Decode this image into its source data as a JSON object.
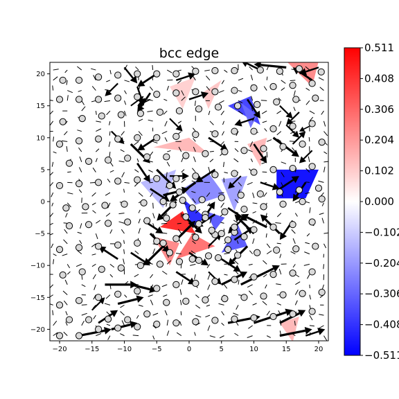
{
  "chart_data": {
    "type": "heatmap",
    "title": "bcc edge",
    "xlabel": "",
    "ylabel": "",
    "xlim": [
      -21.5,
      21.5
    ],
    "ylim": [
      -21.8,
      21.8
    ],
    "x_ticks": [
      -20,
      -15,
      -10,
      -5,
      0,
      5,
      10,
      15,
      20
    ],
    "y_ticks": [
      -20,
      -15,
      -10,
      -5,
      0,
      5,
      10,
      15,
      20
    ],
    "colorbar": {
      "cmap": "bwr",
      "vmin": -0.511,
      "vmax": 0.511,
      "tick_labels": [
        "0.511",
        "0.408",
        "0.306",
        "0.204",
        "0.102",
        "0.000",
        "−0.102",
        "−0.204",
        "−0.306",
        "−0.408",
        "−0.511"
      ]
    },
    "field_patches": [
      {
        "x": [
          13.5,
          20.0,
          18.0,
          13.5
        ],
        "y": [
          5.0,
          5.0,
          0.5,
          0.5
        ],
        "value": -0.511
      },
      {
        "x": [
          -1.0,
          2.5,
          0.5
        ],
        "y": [
          0.5,
          -2.5,
          -4.0
        ],
        "value": -0.45
      },
      {
        "x": [
          2.5,
          5.5,
          4.0
        ],
        "y": [
          -1.5,
          -2.5,
          -4.5
        ],
        "value": -0.35
      },
      {
        "x": [
          -4.5,
          -1.0,
          1.0
        ],
        "y": [
          -4.0,
          -1.5,
          -5.0
        ],
        "value": 0.45
      },
      {
        "x": [
          -2.0,
          0.5,
          4.0
        ],
        "y": [
          -9.0,
          -5.0,
          -7.0
        ],
        "value": 0.3
      },
      {
        "x": [
          -1.0,
          3.0,
          5.5,
          1.0
        ],
        "y": [
          2.0,
          4.5,
          1.0,
          -0.5
        ],
        "value": -0.25
      },
      {
        "x": [
          5.0,
          7.5,
          9.0
        ],
        "y": [
          -8.0,
          -3.5,
          -7.0
        ],
        "value": -0.35
      },
      {
        "x": [
          6.0,
          9.5,
          11.0
        ],
        "y": [
          15.0,
          16.5,
          12.0
        ],
        "value": -0.4
      },
      {
        "x": [
          8.0,
          10.5,
          9.5
        ],
        "y": [
          15.5,
          13.5,
          11.5
        ],
        "value": -0.3
      },
      {
        "x": [
          5.0,
          9.0,
          7.0
        ],
        "y": [
          3.5,
          4.0,
          -1.5
        ],
        "value": -0.2
      },
      {
        "x": [
          -7.5,
          -2.0,
          -4.0
        ],
        "y": [
          3.0,
          5.0,
          -1.0
        ],
        "value": -0.15
      },
      {
        "x": [
          -5.5,
          -1.5,
          -3.0
        ],
        "y": [
          -5.5,
          -6.5,
          -10.0
        ],
        "value": 0.25
      },
      {
        "x": [
          -5.5,
          0.0,
          3.0
        ],
        "y": [
          8.5,
          10.0,
          7.5
        ],
        "value": 0.15
      },
      {
        "x": [
          15.0,
          20.0,
          19.0
        ],
        "y": [
          22.0,
          22.0,
          18.0
        ],
        "value": 0.25
      },
      {
        "x": [
          2.0,
          5.0,
          3.0
        ],
        "y": [
          17.0,
          19.0,
          14.5
        ],
        "value": 0.12
      },
      {
        "x": [
          -3.0,
          1.0,
          -1.0
        ],
        "y": [
          18.0,
          19.5,
          14.5
        ],
        "value": 0.1
      },
      {
        "x": [
          9.0,
          12.0,
          11.0
        ],
        "y": [
          9.0,
          10.0,
          5.5
        ],
        "value": 0.15
      },
      {
        "x": [
          14.0,
          17.0,
          16.0
        ],
        "y": [
          -19.0,
          -18.0,
          -22.0
        ],
        "value": 0.15
      }
    ],
    "atoms": [
      [
        -19.5,
        19
      ],
      [
        -17,
        19
      ],
      [
        -14,
        19.5
      ],
      [
        -11,
        19.8
      ],
      [
        -8,
        20
      ],
      [
        -5,
        20
      ],
      [
        -2,
        20
      ],
      [
        1,
        20.4
      ],
      [
        4,
        20.5
      ],
      [
        7,
        20.5
      ],
      [
        11,
        20.6
      ],
      [
        14,
        20.4
      ],
      [
        17,
        20.8
      ],
      [
        20.4,
        20.3
      ],
      [
        -20,
        16
      ],
      [
        -17,
        16
      ],
      [
        -14,
        16
      ],
      [
        -11,
        16.2
      ],
      [
        -8,
        16.4
      ],
      [
        -5,
        16.8
      ],
      [
        -2,
        17
      ],
      [
        1,
        17.2
      ],
      [
        4,
        17.2
      ],
      [
        7,
        17.4
      ],
      [
        10,
        17.8
      ],
      [
        13,
        18
      ],
      [
        16,
        18.2
      ],
      [
        19,
        18.5
      ],
      [
        -19.5,
        12.5
      ],
      [
        -16.5,
        13
      ],
      [
        -13.5,
        13.4
      ],
      [
        -10.5,
        13.6
      ],
      [
        -7.5,
        13.8
      ],
      [
        -4.5,
        14
      ],
      [
        -1.5,
        14.2
      ],
      [
        1.5,
        14.5
      ],
      [
        4.5,
        14.8
      ],
      [
        7.5,
        15
      ],
      [
        10.5,
        15.2
      ],
      [
        13.5,
        15.6
      ],
      [
        16.5,
        16
      ],
      [
        19.5,
        16.2
      ],
      [
        -20,
        9
      ],
      [
        -17,
        9.5
      ],
      [
        -14,
        9.8
      ],
      [
        -11,
        9.8
      ],
      [
        -8,
        10
      ],
      [
        -5,
        10
      ],
      [
        -2,
        10.2
      ],
      [
        1,
        10.5
      ],
      [
        4,
        10.6
      ],
      [
        7,
        11
      ],
      [
        10,
        11
      ],
      [
        13,
        11.4
      ],
      [
        16,
        11.8
      ],
      [
        19,
        12.2
      ],
      [
        -18.5,
        6
      ],
      [
        -15.5,
        6.3
      ],
      [
        -12.5,
        6.5
      ],
      [
        -9.5,
        6.8
      ],
      [
        -6.5,
        7
      ],
      [
        -3.5,
        7
      ],
      [
        -0.5,
        7.2
      ],
      [
        2.5,
        7.5
      ],
      [
        5.5,
        7.8
      ],
      [
        8.5,
        8
      ],
      [
        11.5,
        8.3
      ],
      [
        14.5,
        8.6
      ],
      [
        17.5,
        9
      ],
      [
        20.5,
        9.3
      ],
      [
        -20,
        2.5
      ],
      [
        -17,
        2.8
      ],
      [
        -14,
        3
      ],
      [
        -11,
        3.2
      ],
      [
        -8,
        3.4
      ],
      [
        -5,
        3.6
      ],
      [
        -2,
        3.6
      ],
      [
        1,
        4
      ],
      [
        4,
        4.2
      ],
      [
        7,
        4.4
      ],
      [
        10,
        4.6
      ],
      [
        13,
        5
      ],
      [
        16,
        5.2
      ],
      [
        19,
        5.5
      ],
      [
        -19,
        -1
      ],
      [
        -16,
        -0.8
      ],
      [
        -13,
        -0.6
      ],
      [
        -10,
        -0.4
      ],
      [
        -7,
        -0.2
      ],
      [
        -4,
        0
      ],
      [
        -1,
        0.2
      ],
      [
        2,
        0.3
      ],
      [
        5,
        0.6
      ],
      [
        8,
        1
      ],
      [
        11,
        1.2
      ],
      [
        14,
        1.5
      ],
      [
        17,
        1.8
      ],
      [
        20,
        2.1
      ],
      [
        -18.5,
        -3.8
      ],
      [
        -15.5,
        -3.6
      ],
      [
        -12.5,
        -3.4
      ],
      [
        -9.5,
        -3.2
      ],
      [
        -6.5,
        -3
      ],
      [
        -3.5,
        -2.6
      ],
      [
        -0.5,
        -2.4
      ],
      [
        2.5,
        -2
      ],
      [
        5.5,
        -1.6
      ],
      [
        8.5,
        -1.2
      ],
      [
        11.5,
        -0.8
      ],
      [
        14.5,
        -0.4
      ],
      [
        17.5,
        0
      ],
      [
        20.5,
        0.4
      ],
      [
        -20,
        -7.5
      ],
      [
        -17,
        -7.2
      ],
      [
        -14,
        -7
      ],
      [
        -11,
        -6.8
      ],
      [
        -8,
        -6.5
      ],
      [
        -5,
        -6.2
      ],
      [
        -2,
        -5.8
      ],
      [
        1,
        -5.6
      ],
      [
        4,
        -5.2
      ],
      [
        7,
        -4.8
      ],
      [
        10,
        -4.4
      ],
      [
        13,
        -4
      ],
      [
        16,
        -3.6
      ],
      [
        19,
        -3.2
      ],
      [
        -19.5,
        -11.5
      ],
      [
        -16.5,
        -11
      ],
      [
        -13.5,
        -10.6
      ],
      [
        -10.5,
        -10.4
      ],
      [
        -7.5,
        -10
      ],
      [
        -4.5,
        -9.8
      ],
      [
        -1.5,
        -9.4
      ],
      [
        1.5,
        -9.2
      ],
      [
        4.5,
        -8.8
      ],
      [
        7.5,
        -8.4
      ],
      [
        10.5,
        -8
      ],
      [
        13.5,
        -7.6
      ],
      [
        16.5,
        -7.4
      ],
      [
        19.5,
        -7
      ],
      [
        -20,
        -16.2
      ],
      [
        -17,
        -15.5
      ],
      [
        -14,
        -15
      ],
      [
        -11,
        -14.5
      ],
      [
        -8,
        -14
      ],
      [
        -5,
        -13.6
      ],
      [
        -2,
        -13
      ],
      [
        1,
        -12.8
      ],
      [
        4,
        -12.5
      ],
      [
        7,
        -12.2
      ],
      [
        10,
        -11.8
      ],
      [
        13,
        -11.4
      ],
      [
        16,
        -11.2
      ],
      [
        19,
        -11
      ],
      [
        -18.5,
        -18.5
      ],
      [
        -15.5,
        -18.5
      ],
      [
        -12.5,
        -18.4
      ],
      [
        -9.5,
        -18.5
      ],
      [
        -6.5,
        -17.6
      ],
      [
        -3.5,
        -15.8
      ],
      [
        -0.5,
        -15.6
      ],
      [
        2.5,
        -15.4
      ],
      [
        5.5,
        -15.2
      ],
      [
        8.5,
        -15
      ],
      [
        11.5,
        -14.8
      ],
      [
        14.5,
        -14.6
      ],
      [
        17.5,
        -14.4
      ],
      [
        20.5,
        -14.2
      ],
      [
        -20,
        -21
      ],
      [
        -17,
        -21
      ],
      [
        -14,
        -20
      ],
      [
        -11,
        -19.8
      ],
      [
        -8,
        -19.6
      ],
      [
        -5,
        -19.2
      ],
      [
        -2,
        -19
      ],
      [
        1,
        -18.8
      ],
      [
        4,
        -18.6
      ],
      [
        7,
        -18.4
      ],
      [
        10,
        -18.2
      ],
      [
        13,
        -18
      ],
      [
        16,
        -17.6
      ],
      [
        19,
        -17.2
      ],
      [
        -3,
        2.5
      ],
      [
        -1.5,
        1.5
      ],
      [
        0.5,
        -1
      ],
      [
        2.5,
        -2.5
      ],
      [
        3.5,
        -4.5
      ],
      [
        5,
        -5
      ],
      [
        7,
        -4
      ],
      [
        8.5,
        -5.5
      ],
      [
        6,
        -6
      ],
      [
        -4,
        -6.5
      ],
      [
        -3,
        -8
      ],
      [
        0.5,
        -9
      ],
      [
        3,
        -8.5
      ],
      [
        6,
        -7.5
      ],
      [
        1.5,
        -3.5
      ],
      [
        -2.5,
        -0.5
      ]
    ],
    "arrows": [
      [
        -10,
        21,
        2,
        -2.5
      ],
      [
        -5,
        20,
        -3,
        -2
      ],
      [
        -2,
        19,
        3,
        1
      ],
      [
        11,
        20.6,
        -3,
        1.5
      ],
      [
        15,
        21,
        -5,
        0.5
      ],
      [
        19,
        19,
        -3,
        2
      ],
      [
        20,
        21,
        -3,
        -1
      ],
      [
        -8,
        18,
        1,
        -3
      ],
      [
        -11,
        18.5,
        -2,
        -2
      ],
      [
        -6,
        17,
        -2,
        -3
      ],
      [
        -9,
        15,
        2,
        1.5
      ],
      [
        -6,
        16,
        -2,
        -1
      ],
      [
        0,
        16,
        3,
        1
      ],
      [
        9,
        16,
        2,
        -3
      ],
      [
        14,
        15,
        2,
        -2
      ],
      [
        17,
        14,
        -2,
        -2
      ],
      [
        -3,
        13,
        2,
        -2
      ],
      [
        10,
        13,
        -3,
        -1
      ],
      [
        15,
        12,
        2,
        -2
      ],
      [
        19,
        12,
        -2,
        -1
      ],
      [
        -12,
        11,
        2,
        -2
      ],
      [
        -9,
        9,
        3,
        -3
      ],
      [
        -5,
        10,
        -3,
        -2
      ],
      [
        3,
        10,
        3,
        -2
      ],
      [
        10,
        9,
        2,
        -3
      ],
      [
        13,
        10,
        4,
        -3
      ],
      [
        16,
        9,
        2,
        2
      ],
      [
        19,
        8,
        -2,
        -2
      ],
      [
        -8,
        6,
        2,
        -3
      ],
      [
        -5,
        5,
        3,
        -3
      ],
      [
        -3,
        4,
        3,
        0
      ],
      [
        1,
        3,
        -4,
        -3
      ],
      [
        4,
        5,
        -3,
        -2
      ],
      [
        8,
        4,
        -2,
        -2
      ],
      [
        11,
        3,
        3,
        -1
      ],
      [
        14,
        2,
        3,
        2
      ],
      [
        18,
        3,
        -2,
        -3
      ],
      [
        -6,
        2,
        3,
        -2
      ],
      [
        -4,
        1,
        4,
        1
      ],
      [
        -2,
        0,
        -3,
        -3
      ],
      [
        -1,
        -2,
        3,
        -3
      ],
      [
        2,
        -3,
        2,
        3
      ],
      [
        4,
        -2,
        -3,
        -2
      ],
      [
        6,
        -1,
        3,
        -2
      ],
      [
        8,
        -3,
        -2,
        -2
      ],
      [
        10,
        -5,
        -3,
        3
      ],
      [
        12,
        -4,
        -4,
        2
      ],
      [
        14,
        -5,
        -3,
        3
      ],
      [
        16,
        -3,
        -2,
        -3
      ],
      [
        -7,
        -3,
        3,
        -2
      ],
      [
        -6,
        -5,
        3,
        -3
      ],
      [
        -4,
        -7,
        -3,
        -3
      ],
      [
        -2,
        -6,
        3,
        3
      ],
      [
        0,
        -8,
        3,
        -2
      ],
      [
        3,
        -7,
        2,
        2
      ],
      [
        5,
        -9,
        3,
        -2
      ],
      [
        7,
        -6,
        3,
        2
      ],
      [
        9,
        -7,
        -3,
        -3
      ],
      [
        -9,
        -8,
        3,
        -2
      ],
      [
        -11,
        -9,
        -3,
        2
      ],
      [
        -13,
        -13,
        5,
        0
      ],
      [
        -9,
        -13,
        4,
        -1
      ],
      [
        -11,
        -16,
        4,
        1
      ],
      [
        -14,
        -19,
        3,
        2
      ],
      [
        -17,
        -21,
        5,
        1
      ],
      [
        -12,
        -20,
        4,
        1
      ],
      [
        5,
        -13,
        4,
        2
      ],
      [
        8,
        -13,
        6,
        3
      ],
      [
        6,
        -19,
        5,
        1
      ],
      [
        10,
        -19,
        6,
        2
      ],
      [
        14,
        -19,
        4,
        2
      ],
      [
        14,
        -21,
        5,
        1
      ],
      [
        18,
        -21,
        3,
        1
      ],
      [
        -15,
        -17,
        2,
        2
      ],
      [
        -2,
        -11,
        3,
        -2
      ],
      [
        3,
        -11,
        2,
        -2
      ]
    ]
  }
}
